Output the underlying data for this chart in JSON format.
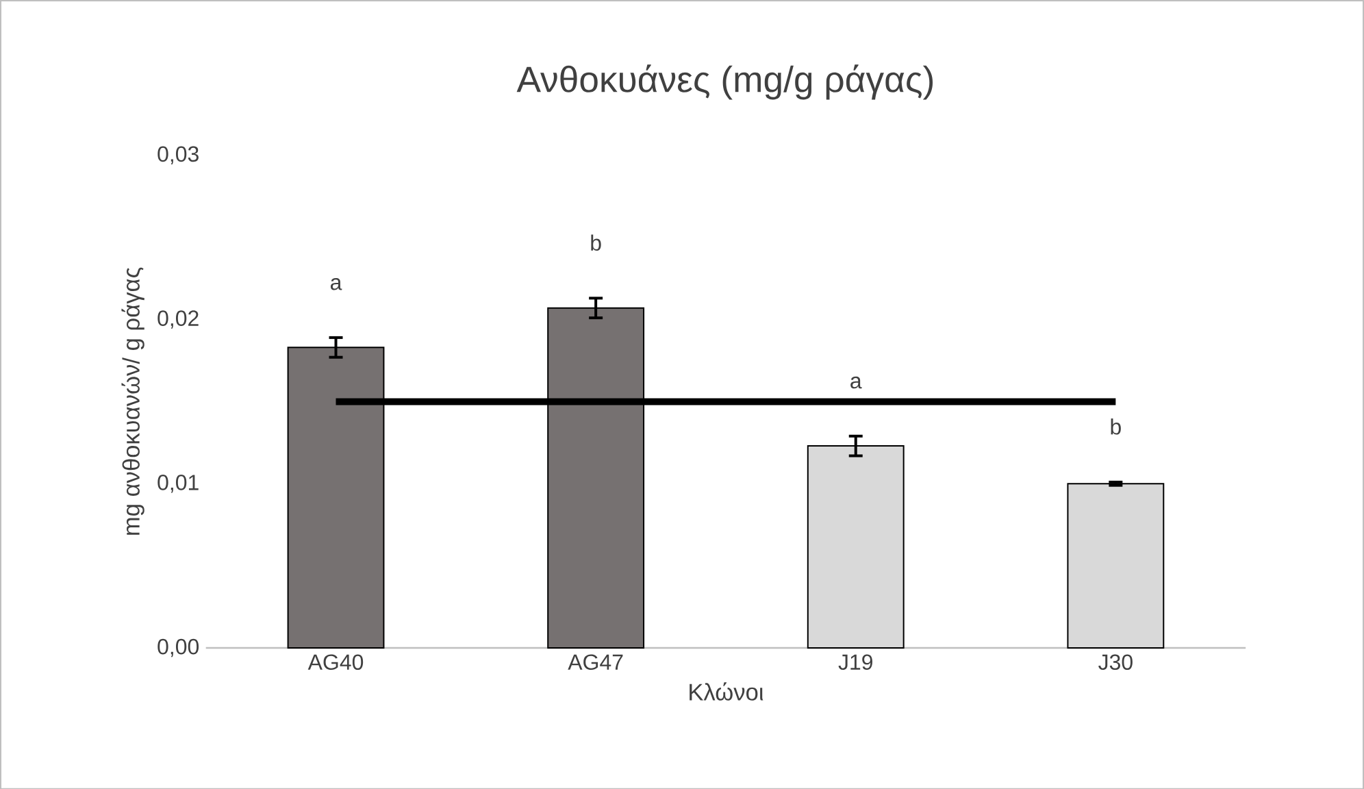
{
  "chart_data": {
    "type": "bar",
    "title": "Ανθοκυάνες (mg/g ράγας)",
    "xlabel": "Κλώνοι",
    "ylabel": "mg ανθοκυανών/ g ράγας",
    "categories": [
      "AG40",
      "AG47",
      "J19",
      "J30"
    ],
    "series": [
      {
        "colors": [
          "#767171",
          "#767171",
          "#d9d9d9",
          "#d9d9d9"
        ],
        "values": [
          0.0183,
          0.0207,
          0.0123,
          0.01
        ],
        "errors": [
          0.0006,
          0.0006,
          0.0006,
          0.0001
        ]
      },
      {
        "type": "line",
        "color": "#000000",
        "values": [
          0.015,
          0.015,
          0.015,
          0.015
        ]
      }
    ],
    "ylim": [
      0,
      0.03
    ],
    "yticks": [
      {
        "value": 0,
        "label": "0,00"
      },
      {
        "value": 0.01,
        "label": "0,01"
      },
      {
        "value": 0.02,
        "label": "0,02"
      },
      {
        "value": 0.03,
        "label": "0,03"
      }
    ],
    "annotations": [
      "a",
      "b",
      "a",
      "b"
    ],
    "grid": false
  }
}
